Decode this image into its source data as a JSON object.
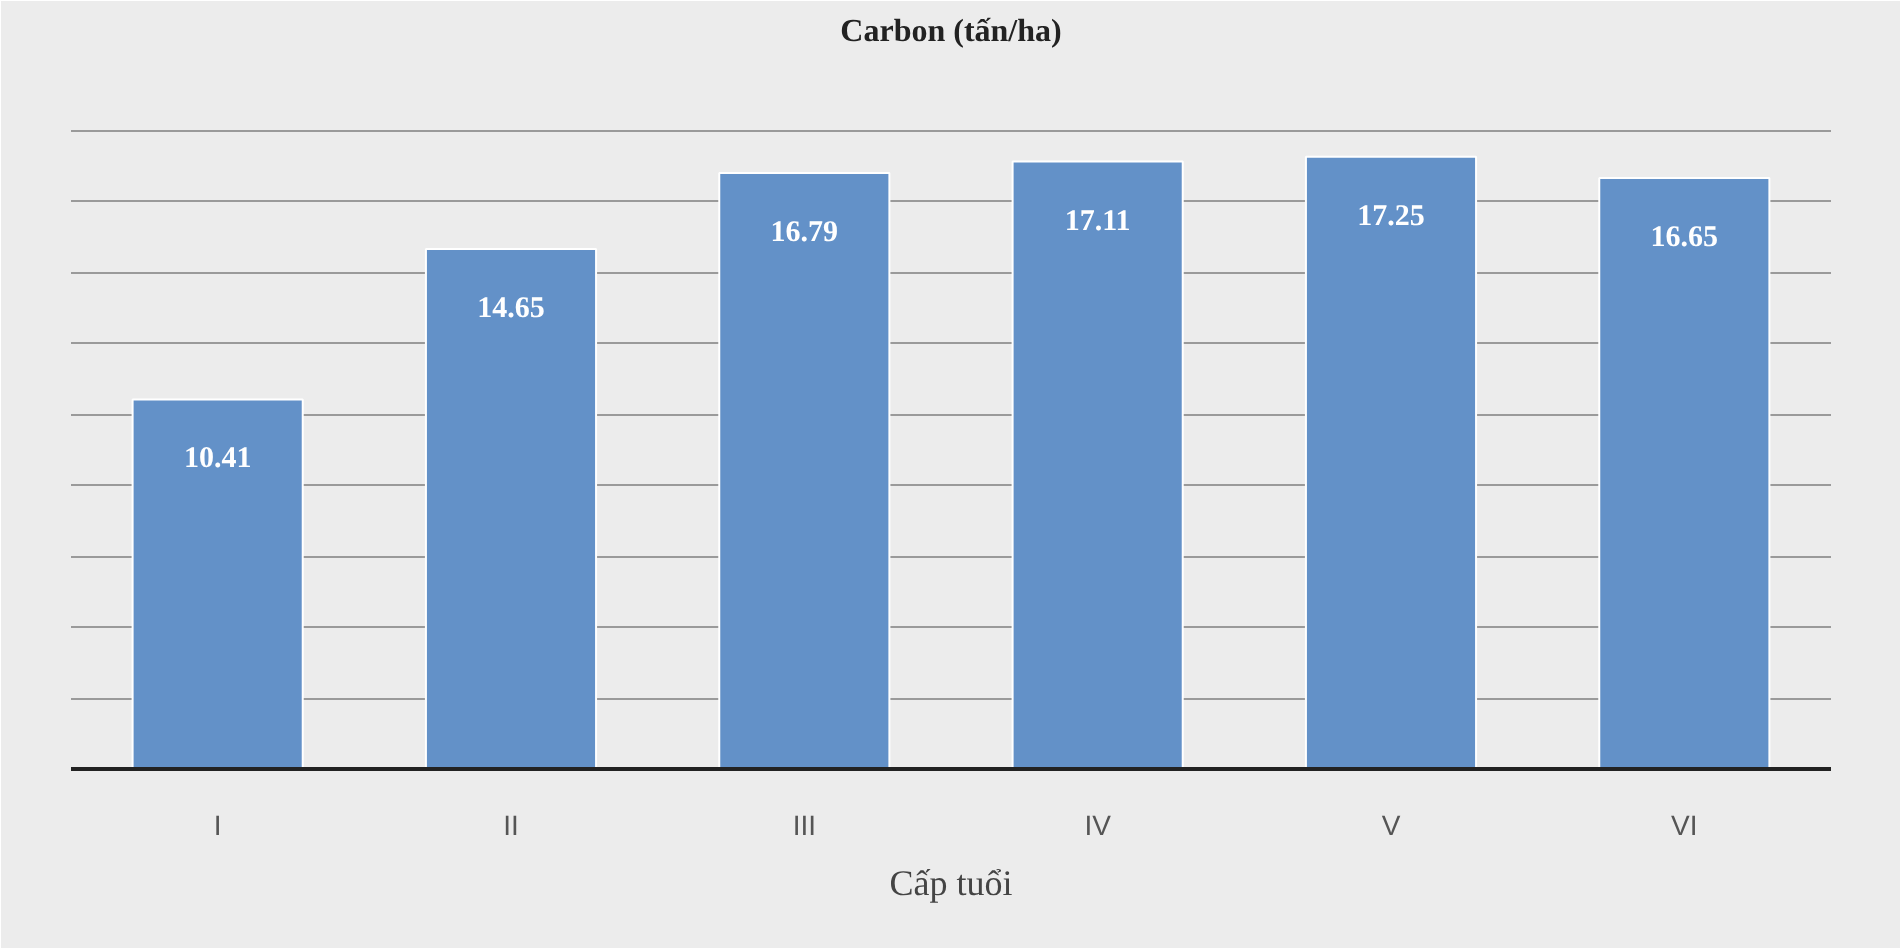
{
  "chart_data": {
    "type": "bar",
    "title": "Carbon (tấn/ha)",
    "xlabel": "Cấp tuổi",
    "categories": [
      "I",
      "II",
      "III",
      "IV",
      "V",
      "VI"
    ],
    "values": [
      10.41,
      14.65,
      16.79,
      17.11,
      17.25,
      16.65
    ],
    "color": "#6391c8",
    "data_labels": true,
    "grid": "y",
    "tick_labels": "x",
    "ylim": [
      0,
      20
    ],
    "yticks": [
      {
        "value": 0,
        "label": null
      },
      {
        "value": 2,
        "label": null
      },
      {
        "value": 4,
        "label": null
      },
      {
        "value": 6,
        "label": null
      },
      {
        "value": 8,
        "label": null
      },
      {
        "value": 10,
        "label": null
      },
      {
        "value": 12,
        "label": null
      },
      {
        "value": 14,
        "label": null
      },
      {
        "value": 16,
        "label": null
      },
      {
        "value": 18,
        "label": null
      }
    ]
  }
}
